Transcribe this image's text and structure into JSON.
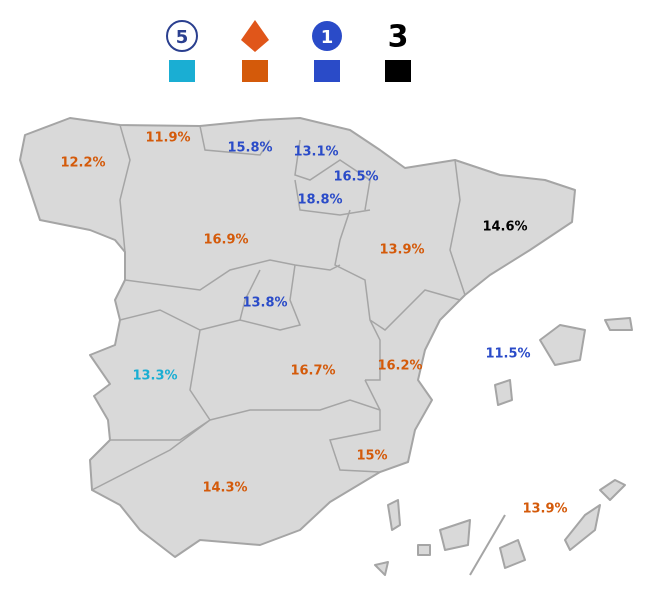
{
  "legend": {
    "channels": [
      {
        "logo": "5",
        "color": "#1aaed3"
      },
      {
        "color": "#d45a0a"
      },
      {
        "logo": "1",
        "color": "#2a4bc8"
      },
      {
        "logo": "3",
        "color": "#000000"
      }
    ]
  },
  "regions": [
    {
      "label": "12.2%",
      "color": "#d45a0a"
    },
    {
      "label": "11.9%",
      "color": "#d45a0a"
    },
    {
      "label": "15.8%",
      "color": "#2a4bc8"
    },
    {
      "label": "13.1%",
      "color": "#2a4bc8"
    },
    {
      "label": "16.5%",
      "color": "#2a4bc8"
    },
    {
      "label": "18.8%",
      "color": "#2a4bc8"
    },
    {
      "label": "16.9%",
      "color": "#d45a0a"
    },
    {
      "label": "13.9%",
      "color": "#d45a0a"
    },
    {
      "label": "14.6%",
      "color": "#000000"
    },
    {
      "label": "13.8%",
      "color": "#2a4bc8"
    },
    {
      "label": "11.5%",
      "color": "#2a4bc8"
    },
    {
      "label": "13.3%",
      "color": "#1aaed3"
    },
    {
      "label": "16.7%",
      "color": "#d45a0a"
    },
    {
      "label": "16.2%",
      "color": "#d45a0a"
    },
    {
      "label": "15%",
      "color": "#d45a0a"
    },
    {
      "label": "14.3%",
      "color": "#d45a0a"
    },
    {
      "label": "13.9%",
      "color": "#d45a0a"
    }
  ]
}
